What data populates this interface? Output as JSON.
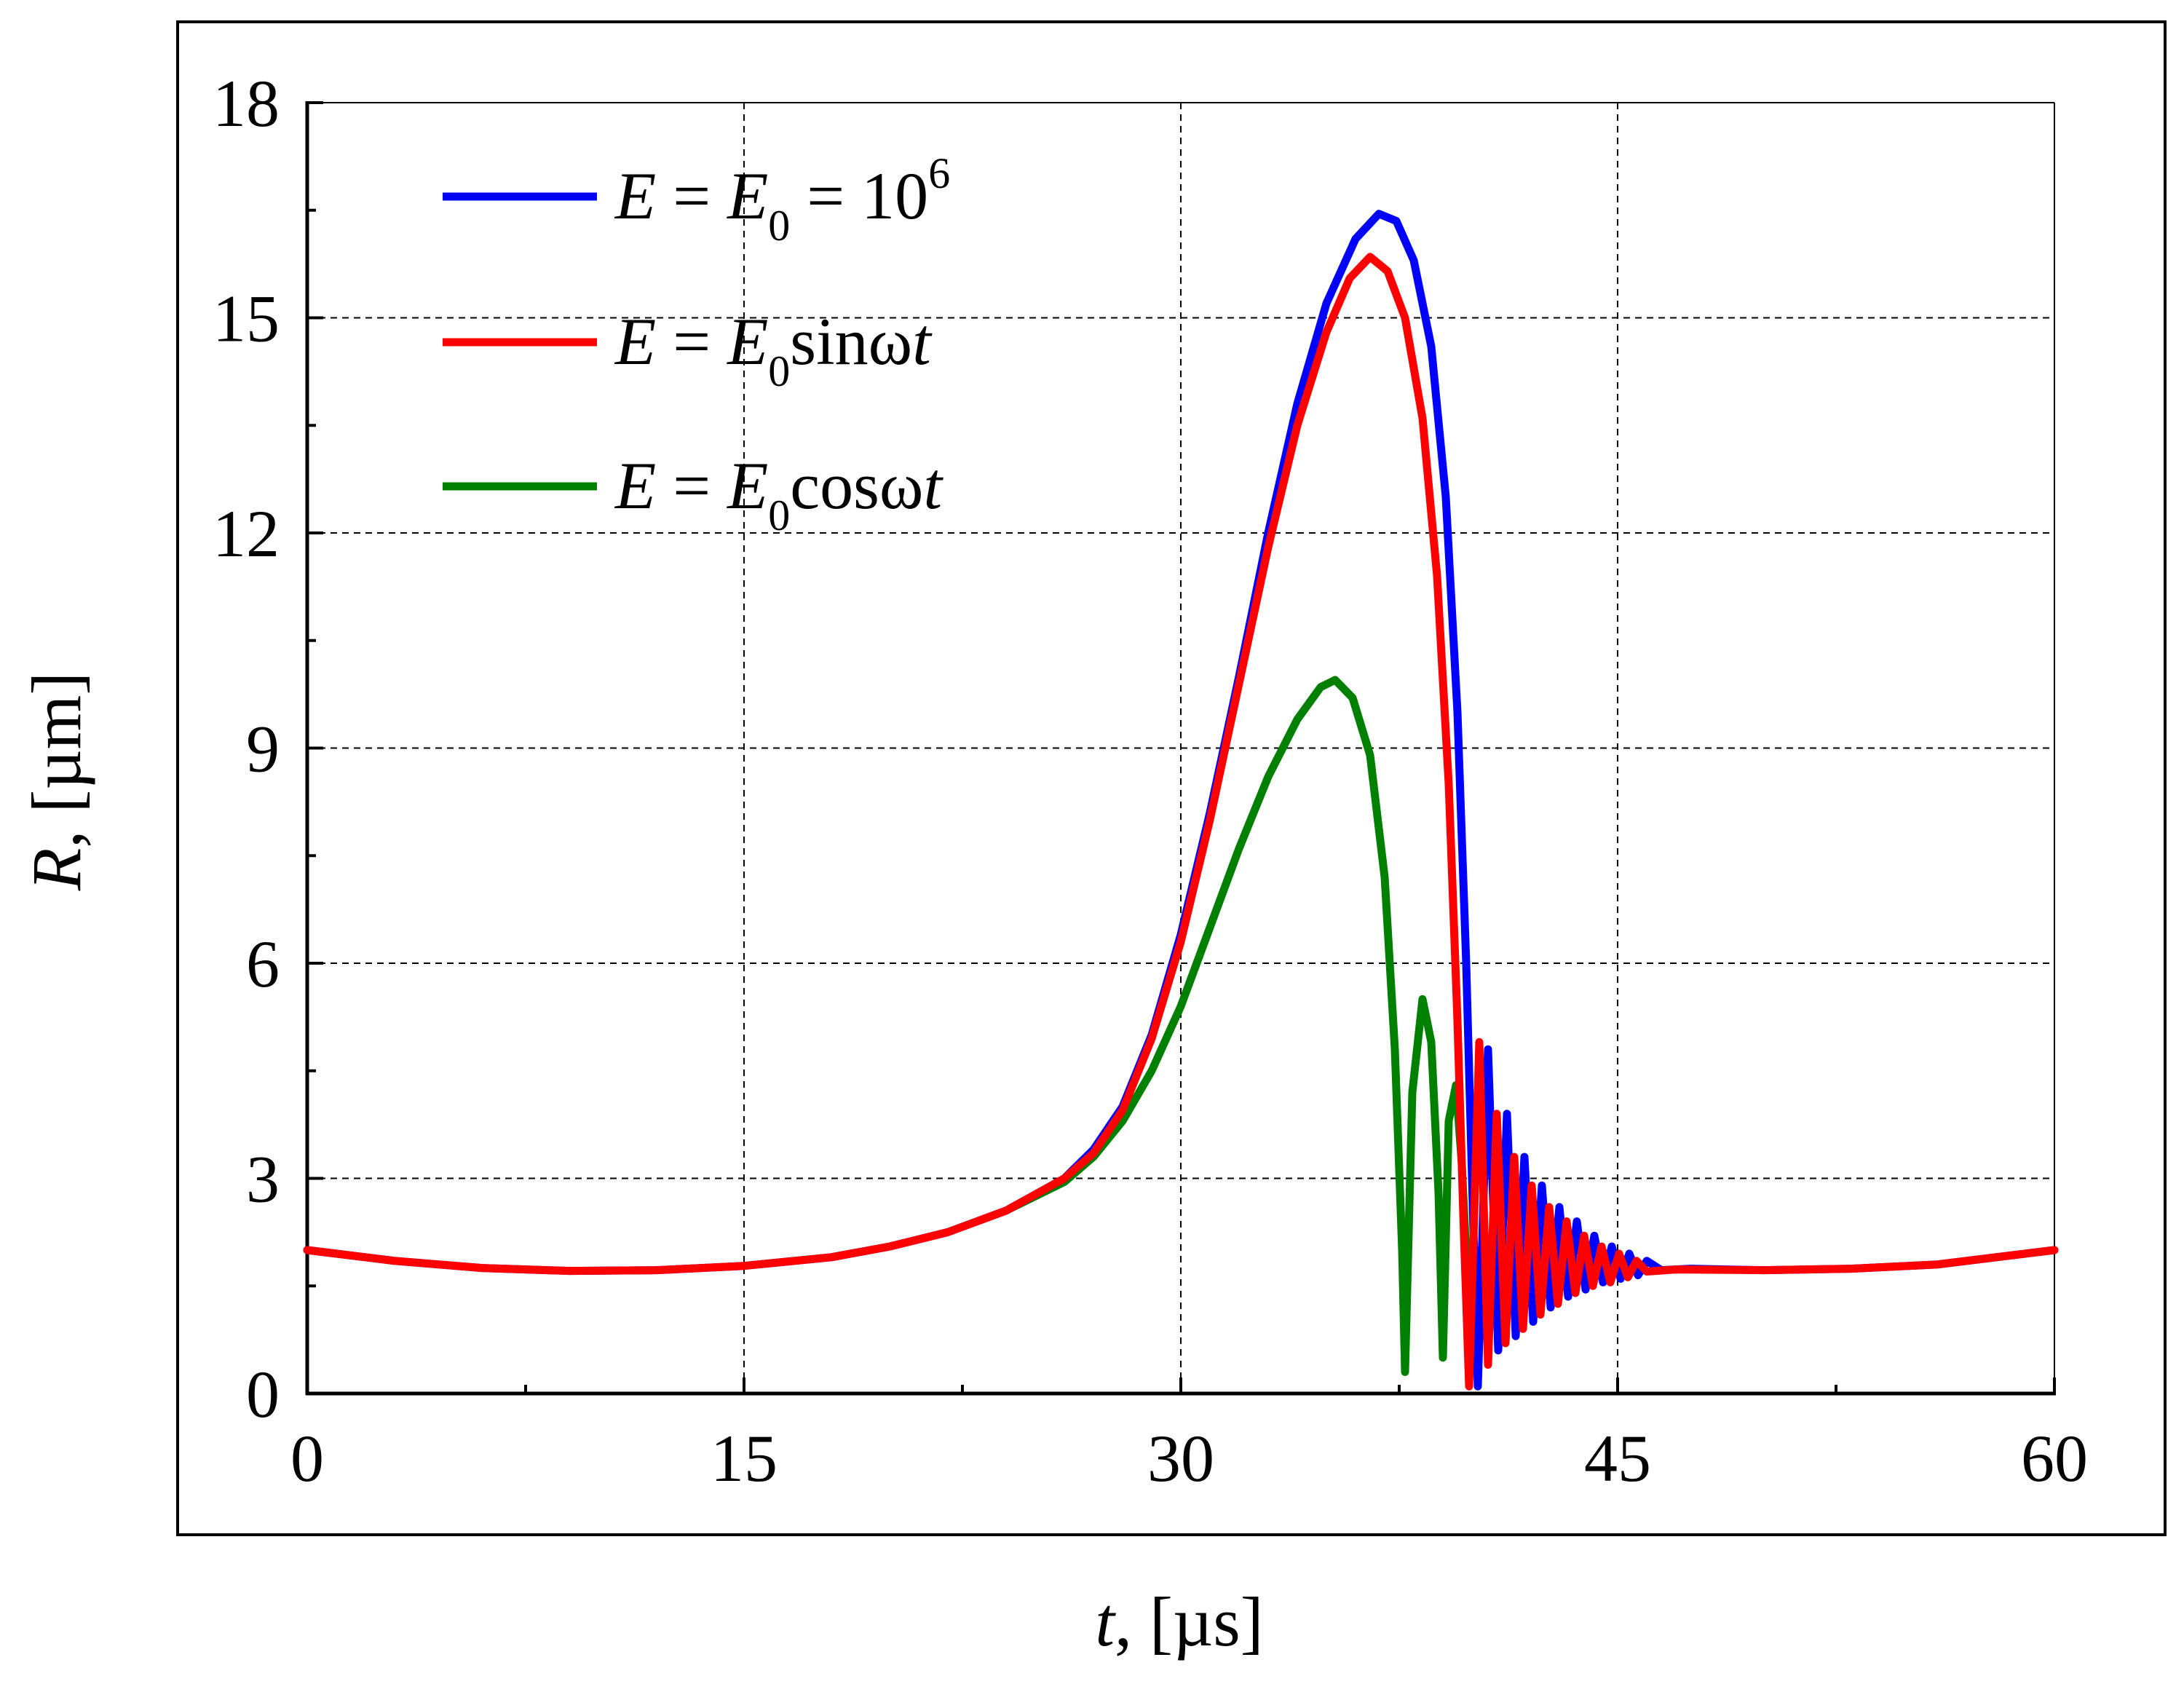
{
  "chart_data": {
    "type": "line",
    "xlabel": {
      "var": "t",
      "unit": ", [µs]"
    },
    "ylabel": {
      "var": "R",
      "unit": ", [µm]"
    },
    "xlim": [
      0,
      60
    ],
    "ylim": [
      0,
      18
    ],
    "x_ticks": [
      "0",
      "15",
      "30",
      "45",
      "60"
    ],
    "y_ticks": [
      "0",
      "3",
      "6",
      "9",
      "12",
      "15",
      "18"
    ],
    "x_tick_values": [
      0,
      15,
      30,
      45,
      60
    ],
    "y_tick_values": [
      0,
      3,
      6,
      9,
      12,
      15,
      18
    ],
    "grid": "dashed",
    "legend_position": "top-left",
    "series": [
      {
        "name": "E = E0 = 10^6",
        "legend": {
          "lhs": "E",
          "eq1": " = ",
          "e0": "E",
          "sub": "0",
          "rest": " = 10",
          "sup": "6",
          "tail": ""
        },
        "color": "#0000ff",
        "points": [
          [
            0,
            2.0
          ],
          [
            3,
            1.85
          ],
          [
            6,
            1.75
          ],
          [
            9,
            1.71
          ],
          [
            12,
            1.72
          ],
          [
            15,
            1.78
          ],
          [
            18,
            1.9
          ],
          [
            20,
            2.05
          ],
          [
            22,
            2.25
          ],
          [
            24,
            2.55
          ],
          [
            26,
            3.0
          ],
          [
            27,
            3.4
          ],
          [
            28,
            4.0
          ],
          [
            29,
            5.0
          ],
          [
            30,
            6.4
          ],
          [
            31,
            8.1
          ],
          [
            32,
            10.0
          ],
          [
            33,
            12.0
          ],
          [
            34,
            13.8
          ],
          [
            35,
            15.2
          ],
          [
            36,
            16.1
          ],
          [
            36.8,
            16.45
          ],
          [
            37.4,
            16.35
          ],
          [
            38.0,
            15.8
          ],
          [
            38.6,
            14.6
          ],
          [
            39.1,
            12.5
          ],
          [
            39.5,
            9.5
          ],
          [
            39.8,
            6.0
          ],
          [
            40.0,
            3.0
          ],
          [
            40.2,
            0.1
          ],
          [
            40.55,
            4.8
          ],
          [
            40.9,
            0.6
          ],
          [
            41.2,
            3.9
          ],
          [
            41.5,
            0.8
          ],
          [
            41.8,
            3.3
          ],
          [
            42.1,
            1.0
          ],
          [
            42.4,
            2.9
          ],
          [
            42.7,
            1.2
          ],
          [
            43.0,
            2.6
          ],
          [
            43.3,
            1.35
          ],
          [
            43.6,
            2.4
          ],
          [
            43.9,
            1.45
          ],
          [
            44.2,
            2.2
          ],
          [
            44.5,
            1.55
          ],
          [
            44.8,
            2.05
          ],
          [
            45.1,
            1.6
          ],
          [
            45.4,
            1.95
          ],
          [
            45.7,
            1.65
          ],
          [
            46.0,
            1.85
          ],
          [
            46.5,
            1.72
          ],
          [
            47.5,
            1.74
          ],
          [
            50,
            1.72
          ],
          [
            53,
            1.74
          ],
          [
            56,
            1.8
          ],
          [
            60,
            2.0
          ]
        ]
      },
      {
        "name": "E = E0 sinωt",
        "legend": {
          "lhs": "E",
          "eq1": " = ",
          "e0": "E",
          "sub": "0",
          "rest": "sinω",
          "sup": "",
          "tail": "t"
        },
        "color": "#ff0000",
        "points": [
          [
            0,
            2.0
          ],
          [
            3,
            1.85
          ],
          [
            6,
            1.75
          ],
          [
            9,
            1.71
          ],
          [
            12,
            1.72
          ],
          [
            15,
            1.78
          ],
          [
            18,
            1.9
          ],
          [
            20,
            2.05
          ],
          [
            22,
            2.25
          ],
          [
            24,
            2.55
          ],
          [
            26,
            3.0
          ],
          [
            27,
            3.35
          ],
          [
            28,
            3.95
          ],
          [
            29,
            4.95
          ],
          [
            30,
            6.3
          ],
          [
            31,
            8.0
          ],
          [
            32,
            9.9
          ],
          [
            33,
            11.8
          ],
          [
            34,
            13.5
          ],
          [
            35,
            14.8
          ],
          [
            35.8,
            15.55
          ],
          [
            36.5,
            15.85
          ],
          [
            37.1,
            15.65
          ],
          [
            37.7,
            15.0
          ],
          [
            38.3,
            13.6
          ],
          [
            38.8,
            11.4
          ],
          [
            39.2,
            8.5
          ],
          [
            39.5,
            5.2
          ],
          [
            39.7,
            2.5
          ],
          [
            39.9,
            0.1
          ],
          [
            40.25,
            4.9
          ],
          [
            40.55,
            0.4
          ],
          [
            40.85,
            3.9
          ],
          [
            41.15,
            0.7
          ],
          [
            41.45,
            3.3
          ],
          [
            41.75,
            0.9
          ],
          [
            42.05,
            2.9
          ],
          [
            42.35,
            1.1
          ],
          [
            42.65,
            2.6
          ],
          [
            42.95,
            1.25
          ],
          [
            43.25,
            2.4
          ],
          [
            43.55,
            1.4
          ],
          [
            43.85,
            2.2
          ],
          [
            44.15,
            1.5
          ],
          [
            44.45,
            2.05
          ],
          [
            44.75,
            1.55
          ],
          [
            45.05,
            1.95
          ],
          [
            45.35,
            1.62
          ],
          [
            45.65,
            1.85
          ],
          [
            46.0,
            1.7
          ],
          [
            47.0,
            1.73
          ],
          [
            50,
            1.72
          ],
          [
            53,
            1.74
          ],
          [
            56,
            1.8
          ],
          [
            60,
            2.0
          ]
        ]
      },
      {
        "name": "E = E0 cosωt",
        "legend": {
          "lhs": "E",
          "eq1": " = ",
          "e0": "E",
          "sub": "0",
          "rest": "cosω",
          "sup": "",
          "tail": "t"
        },
        "color": "#008000",
        "points": [
          [
            24,
            2.55
          ],
          [
            26,
            2.95
          ],
          [
            27,
            3.3
          ],
          [
            28,
            3.8
          ],
          [
            29,
            4.5
          ],
          [
            30,
            5.4
          ],
          [
            31,
            6.5
          ],
          [
            32,
            7.6
          ],
          [
            33,
            8.6
          ],
          [
            34,
            9.4
          ],
          [
            34.8,
            9.85
          ],
          [
            35.3,
            9.95
          ],
          [
            35.9,
            9.7
          ],
          [
            36.5,
            8.9
          ],
          [
            37.0,
            7.2
          ],
          [
            37.35,
            4.8
          ],
          [
            37.6,
            2.0
          ],
          [
            37.7,
            0.3
          ],
          [
            37.95,
            4.2
          ],
          [
            38.3,
            5.5
          ],
          [
            38.6,
            4.9
          ],
          [
            38.85,
            2.8
          ],
          [
            39.0,
            0.5
          ],
          [
            39.2,
            3.8
          ],
          [
            39.45,
            4.3
          ],
          [
            39.65,
            3.2
          ],
          [
            39.85,
            1.5
          ]
        ]
      }
    ]
  }
}
